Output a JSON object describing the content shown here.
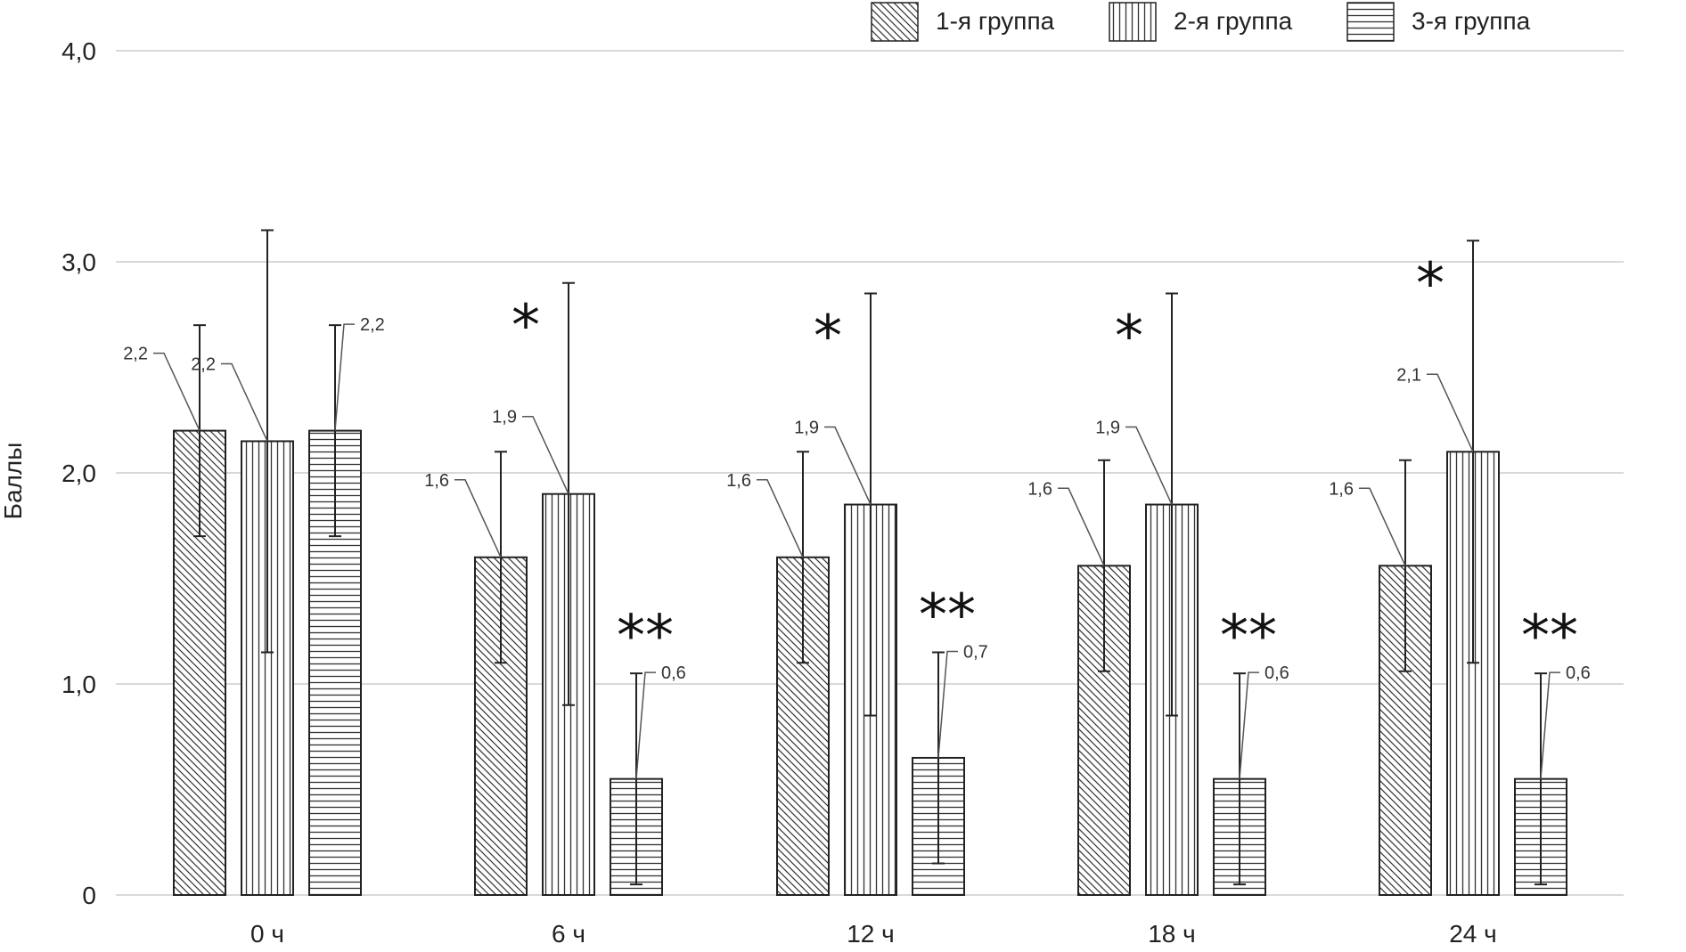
{
  "chart_data": {
    "type": "bar",
    "title": "",
    "xlabel": "",
    "ylabel": "Баллы",
    "ylim": [
      0,
      4
    ],
    "yticks": [
      {
        "value": 0,
        "label": "0"
      },
      {
        "value": 1,
        "label": "1,0"
      },
      {
        "value": 2,
        "label": "2,0"
      },
      {
        "value": 3,
        "label": "3,0"
      },
      {
        "value": 4,
        "label": "4,0"
      }
    ],
    "grid": true,
    "legend_position": "top-right",
    "categories": [
      "0 ч",
      "6 ч",
      "12 ч",
      "18 ч",
      "24 ч"
    ],
    "series": [
      {
        "name": "1-я группа",
        "pattern": "diagonal",
        "values": [
          2.2,
          1.6,
          1.6,
          1.56,
          1.56
        ],
        "error_low": [
          1.7,
          1.1,
          1.1,
          1.06,
          1.06
        ],
        "error_high": [
          2.7,
          2.1,
          2.1,
          2.06,
          2.06
        ],
        "labels": [
          "2,2",
          "1,6",
          "1,6",
          "1,6",
          "1,6"
        ]
      },
      {
        "name": "2-я группа",
        "pattern": "vertical",
        "values": [
          2.15,
          1.9,
          1.85,
          1.85,
          2.1
        ],
        "error_low": [
          1.15,
          0.9,
          0.85,
          0.85,
          1.1
        ],
        "error_high": [
          3.15,
          2.9,
          2.85,
          2.85,
          3.1
        ],
        "labels": [
          "2,2",
          "1,9",
          "1,9",
          "1,9",
          "2,1"
        ]
      },
      {
        "name": "3-я группа",
        "pattern": "horizontal",
        "values": [
          2.2,
          0.55,
          0.65,
          0.55,
          0.55
        ],
        "error_low": [
          1.7,
          0.05,
          0.15,
          0.05,
          0.05
        ],
        "error_high": [
          2.7,
          1.05,
          1.15,
          1.05,
          1.05
        ],
        "labels": [
          "2,2",
          "0,6",
          "0,7",
          "0,6",
          "0,6"
        ]
      }
    ],
    "annotations": [
      {
        "category": "6 ч",
        "series": "2-я группа",
        "text": "*"
      },
      {
        "category": "6 ч",
        "series": "3-я группа",
        "text": "**"
      },
      {
        "category": "12 ч",
        "series": "2-я группа",
        "text": "*"
      },
      {
        "category": "12 ч",
        "series": "3-я группа",
        "text": "**"
      },
      {
        "category": "18 ч",
        "series": "2-я группа",
        "text": "*"
      },
      {
        "category": "18 ч",
        "series": "3-я группа",
        "text": "**"
      },
      {
        "category": "24 ч",
        "series": "2-я группа",
        "text": "*"
      },
      {
        "category": "24 ч",
        "series": "3-я группа",
        "text": "**"
      }
    ]
  }
}
